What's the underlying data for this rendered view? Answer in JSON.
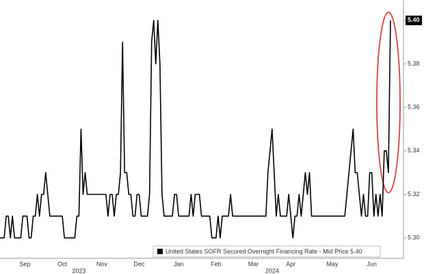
{
  "chart_data": {
    "type": "line",
    "categories": [
      null,
      null,
      null,
      null,
      null,
      null,
      null,
      null,
      null,
      null,
      null,
      null,
      "Sep",
      null,
      null,
      null,
      null,
      null,
      null,
      null,
      null,
      null,
      null,
      null,
      null,
      null,
      null,
      null,
      null,
      null,
      "Oct",
      null,
      null,
      null,
      null,
      null,
      null,
      null,
      null,
      null,
      null,
      null,
      null,
      null,
      null,
      null,
      null,
      null,
      null,
      "Nov",
      null,
      null,
      null,
      null,
      null,
      null,
      null,
      null,
      null,
      null,
      null,
      null,
      null,
      null,
      null,
      null,
      null,
      "Dec",
      null,
      null,
      null,
      null,
      null,
      null,
      null,
      null,
      null,
      null,
      null,
      null,
      null,
      null,
      null,
      null,
      null,
      null,
      "Jan",
      null,
      null,
      null,
      null,
      null,
      null,
      null,
      null,
      null,
      null,
      null,
      null,
      null,
      null,
      null,
      null,
      null,
      "Feb",
      null,
      null,
      null,
      null,
      null,
      null,
      null,
      null,
      null,
      null,
      null,
      null,
      null,
      null,
      null,
      null,
      null,
      "Mar",
      null,
      null,
      null,
      null,
      null,
      null,
      null,
      null,
      null,
      null,
      null,
      null,
      null,
      null,
      null,
      null,
      null,
      "Apr",
      null,
      null,
      null,
      null,
      null,
      null,
      null,
      null,
      null,
      null,
      null,
      null,
      null,
      null,
      null,
      null,
      null,
      null,
      null,
      "May",
      null,
      null,
      null,
      null,
      null,
      null,
      null,
      null,
      null,
      null,
      null,
      null,
      null,
      null,
      null,
      null,
      null,
      null,
      "Jun",
      null,
      null,
      null,
      null,
      null,
      null,
      null,
      null,
      null
    ],
    "year_categories": [
      null,
      null,
      null,
      null,
      null,
      null,
      null,
      null,
      null,
      null,
      null,
      null,
      null,
      null,
      null,
      null,
      null,
      null,
      null,
      null,
      null,
      null,
      null,
      null,
      null,
      null,
      null,
      null,
      null,
      null,
      null,
      null,
      null,
      null,
      null,
      null,
      null,
      null,
      "2023",
      null,
      null,
      null,
      null,
      null,
      null,
      null,
      null,
      null,
      null,
      null,
      null,
      null,
      null,
      null,
      null,
      null,
      null,
      null,
      null,
      null,
      null,
      null,
      null,
      null,
      null,
      null,
      null,
      null,
      null,
      null,
      null,
      null,
      null,
      null,
      null,
      null,
      null,
      null,
      null,
      null,
      null,
      null,
      null,
      null,
      null,
      null,
      null,
      null,
      null,
      null,
      null,
      null,
      null,
      null,
      null,
      null,
      null,
      null,
      null,
      null,
      null,
      null,
      null,
      null,
      null,
      null,
      null,
      null,
      null,
      null,
      null,
      null,
      null,
      null,
      null,
      null,
      null,
      null,
      null,
      null,
      null,
      null,
      null,
      null,
      null,
      null,
      null,
      null,
      null,
      null,
      null,
      "2024",
      null,
      null,
      null,
      null,
      null,
      null,
      null,
      null,
      null,
      null,
      null,
      null,
      null,
      null,
      null,
      null,
      null,
      null,
      null,
      null,
      null,
      null,
      null,
      null,
      null,
      null,
      null,
      null,
      null,
      null,
      null,
      null,
      null,
      null,
      null,
      null,
      null,
      null,
      null,
      null,
      null,
      null,
      null,
      null,
      null,
      null,
      null,
      null,
      null,
      null,
      null,
      null,
      null,
      null,
      null,
      null,
      null
    ],
    "series": [
      {
        "name": "United States SOFR Secured Overnight Financing Rate - Mid Price 5.40",
        "color": "#000000",
        "values": [
          5.3,
          5.3,
          5.3,
          5.31,
          5.31,
          5.3,
          5.31,
          5.3,
          5.3,
          5.3,
          5.3,
          5.31,
          5.31,
          5.31,
          5.3,
          5.3,
          5.31,
          5.31,
          5.32,
          5.31,
          5.32,
          5.32,
          5.33,
          5.32,
          5.31,
          5.31,
          5.31,
          5.31,
          5.31,
          5.31,
          5.31,
          5.3,
          5.3,
          5.3,
          5.3,
          5.3,
          5.3,
          5.31,
          5.31,
          5.35,
          5.32,
          5.33,
          5.32,
          5.32,
          5.32,
          5.32,
          5.32,
          5.32,
          5.32,
          5.32,
          5.32,
          5.32,
          5.31,
          5.32,
          5.32,
          5.31,
          5.32,
          5.32,
          5.33,
          5.39,
          5.33,
          5.33,
          5.32,
          5.32,
          5.31,
          5.31,
          5.32,
          5.32,
          5.31,
          5.31,
          5.31,
          5.31,
          5.32,
          5.39,
          5.4,
          5.38,
          5.4,
          5.38,
          5.32,
          5.31,
          5.31,
          5.31,
          5.31,
          5.31,
          5.32,
          5.32,
          5.31,
          5.31,
          5.31,
          5.31,
          5.31,
          5.31,
          5.32,
          5.31,
          5.32,
          5.32,
          5.32,
          5.31,
          5.31,
          5.31,
          5.31,
          5.31,
          5.3,
          5.3,
          5.3,
          5.31,
          5.3,
          5.31,
          5.31,
          5.31,
          5.31,
          5.32,
          5.31,
          5.31,
          5.31,
          5.31,
          5.31,
          5.31,
          5.31,
          5.31,
          5.31,
          5.31,
          5.31,
          5.31,
          5.31,
          5.31,
          5.31,
          5.31,
          5.31,
          5.33,
          5.34,
          5.35,
          5.33,
          5.31,
          5.32,
          5.31,
          5.31,
          5.31,
          5.31,
          5.32,
          5.31,
          5.3,
          5.31,
          5.31,
          5.32,
          5.31,
          5.32,
          5.33,
          5.32,
          5.33,
          5.31,
          5.31,
          5.31,
          5.31,
          5.31,
          5.31,
          5.31,
          5.31,
          5.31,
          5.31,
          5.31,
          5.31,
          5.31,
          5.31,
          5.31,
          5.31,
          5.31,
          5.32,
          5.33,
          5.34,
          5.35,
          5.33,
          5.33,
          5.32,
          5.31,
          5.32,
          5.31,
          5.31,
          5.33,
          5.33,
          5.31,
          5.32,
          5.31,
          5.32,
          5.31,
          5.34,
          5.34,
          5.33,
          5.4
        ]
      }
    ],
    "ylim": [
      5.29,
      5.41
    ],
    "yticks": [
      {
        "value": 5.3,
        "label": "5.30"
      },
      {
        "value": 5.32,
        "label": "5.32"
      },
      {
        "value": 5.34,
        "label": "5.34"
      },
      {
        "value": 5.36,
        "label": "5.36"
      },
      {
        "value": 5.38,
        "label": "5.38"
      },
      {
        "value": 5.4,
        "label": "5.40"
      }
    ],
    "grid": false
  }
}
